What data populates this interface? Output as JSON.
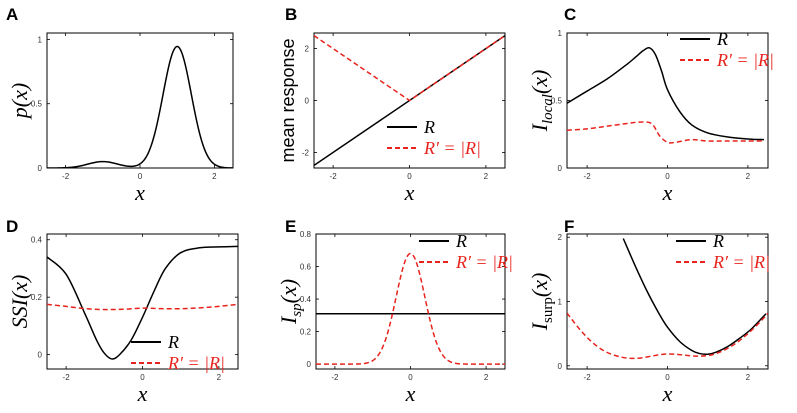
{
  "colors": {
    "solid": "#000000",
    "dashed": "#e8231d"
  },
  "chart_data": [
    {
      "panel": "A",
      "type": "line",
      "ylabel": "p(x)",
      "ylabel_sub": "",
      "ylabel_paren": "",
      "xlabel": "x",
      "xlim": [
        -2.5,
        2.5
      ],
      "ylim": [
        0,
        1.05
      ],
      "xticks": [
        -2,
        0,
        2
      ],
      "yticks": [
        0,
        0.5,
        1
      ],
      "series": [
        {
          "name": "p(x)",
          "style": "solid",
          "func": "gaussmix",
          "params": {
            "w1": 0.1,
            "m1": -1,
            "s1": 0.4,
            "w2": 0.9,
            "m2": 1,
            "s2": 0.38
          }
        }
      ],
      "legend": []
    },
    {
      "panel": "B",
      "type": "line",
      "ylabel": "mean response",
      "ylabel_plain": true,
      "xlabel": "x",
      "xlim": [
        -2.5,
        2.5
      ],
      "ylim": [
        -2.6,
        2.6
      ],
      "xticks": [
        -2,
        0,
        2
      ],
      "yticks": [
        -2,
        0,
        2
      ],
      "series": [
        {
          "name": "R",
          "style": "solid",
          "x": [
            -2.5,
            2.5
          ],
          "y": [
            -2.5,
            2.5
          ]
        },
        {
          "name": "R′ = |R|",
          "style": "dashed",
          "x": [
            -2.5,
            0,
            2.5
          ],
          "y": [
            2.5,
            0,
            2.5
          ]
        }
      ],
      "legend": [
        {
          "label": "R",
          "style": "solid"
        },
        {
          "label": "R′ = |R|",
          "style": "dashed"
        }
      ],
      "legend_position": "bottom-right"
    },
    {
      "panel": "C",
      "type": "line",
      "ylabel": "I",
      "ylabel_sub": "local",
      "ylabel_paren": "(x)",
      "xlabel": "x",
      "xlim": [
        -2.5,
        2.5
      ],
      "ylim": [
        0,
        1.0
      ],
      "xticks": [
        -2,
        0,
        2
      ],
      "yticks": [
        0,
        0.5,
        1
      ],
      "series": [
        {
          "name": "R",
          "style": "solid",
          "x": [
            -2.5,
            -2,
            -1.5,
            -1,
            -0.8,
            -0.6,
            -0.45,
            -0.3,
            -0.15,
            0,
            0.3,
            0.6,
            1,
            1.5,
            2,
            2.4
          ],
          "y": [
            0.48,
            0.57,
            0.66,
            0.77,
            0.82,
            0.87,
            0.89,
            0.84,
            0.72,
            0.58,
            0.42,
            0.32,
            0.26,
            0.23,
            0.215,
            0.21
          ]
        },
        {
          "name": "R′ = |R|",
          "style": "dashed",
          "x": [
            -2.5,
            -2,
            -1.5,
            -1,
            -0.7,
            -0.4,
            -0.2,
            0,
            0.2,
            0.6,
            1,
            1.5,
            2,
            2.4
          ],
          "y": [
            0.28,
            0.29,
            0.31,
            0.33,
            0.34,
            0.33,
            0.24,
            0.19,
            0.19,
            0.21,
            0.2,
            0.2,
            0.2,
            0.2
          ]
        }
      ],
      "legend": [
        {
          "label": "R",
          "style": "solid"
        },
        {
          "label": "R′ = |R|",
          "style": "dashed"
        }
      ],
      "legend_position": "top-right"
    },
    {
      "panel": "D",
      "type": "line",
      "ylabel": "SSI(x)",
      "ylabel_sub": "",
      "ylabel_paren": "",
      "xlabel": "x",
      "xlim": [
        -2.5,
        2.5
      ],
      "ylim": [
        -0.05,
        0.42
      ],
      "xticks": [
        -2,
        0,
        2
      ],
      "yticks": [
        0,
        0.2,
        0.4
      ],
      "series": [
        {
          "name": "R",
          "style": "solid",
          "x": [
            -2.5,
            -2,
            -1.5,
            -1.2,
            -1,
            -0.8,
            -0.6,
            -0.3,
            0,
            0.3,
            0.6,
            1,
            1.5,
            2,
            2.5
          ],
          "y": [
            0.34,
            0.28,
            0.14,
            0.05,
            0.005,
            -0.015,
            0.0,
            0.05,
            0.13,
            0.22,
            0.3,
            0.355,
            0.372,
            0.375,
            0.377
          ]
        },
        {
          "name": "R′ = |R|",
          "style": "dashed",
          "x": [
            -2.5,
            -2,
            -1.5,
            -1,
            -0.5,
            0,
            0.5,
            1,
            1.5,
            2,
            2.5
          ],
          "y": [
            0.175,
            0.168,
            0.16,
            0.157,
            0.158,
            0.162,
            0.16,
            0.16,
            0.163,
            0.168,
            0.175
          ]
        }
      ],
      "legend": [
        {
          "label": "R",
          "style": "solid"
        },
        {
          "label": "R′ = |R|",
          "style": "dashed"
        }
      ],
      "legend_position": "bottom-right"
    },
    {
      "panel": "E",
      "type": "line",
      "ylabel": "I",
      "ylabel_sub": "sp",
      "ylabel_paren": "(x)",
      "xlabel": "x",
      "xlim": [
        -2.5,
        2.5
      ],
      "ylim": [
        -0.03,
        0.8
      ],
      "xticks": [
        -2,
        0,
        2
      ],
      "yticks": [
        0,
        0.2,
        0.4,
        0.6,
        0.8
      ],
      "series": [
        {
          "name": "R",
          "style": "solid",
          "x": [
            -2.5,
            2.5
          ],
          "y": [
            0.31,
            0.31
          ]
        },
        {
          "name": "R′ = |R|",
          "style": "dashed",
          "func": "bell",
          "params": {
            "base": 0.0,
            "amp": 0.68,
            "mu": 0.0,
            "sigma": 0.38
          }
        }
      ],
      "legend": [
        {
          "label": "R",
          "style": "solid"
        },
        {
          "label": "R′ = |R|",
          "style": "dashed"
        }
      ],
      "legend_position": "top-right"
    },
    {
      "panel": "F",
      "type": "line",
      "ylabel": "I",
      "ylabel_sub": "surp",
      "ylabel_sub_upright": true,
      "ylabel_paren": "(x)",
      "xlabel": "x",
      "xlim": [
        -2.5,
        2.5
      ],
      "ylim": [
        -0.05,
        2.05
      ],
      "xticks": [
        -2,
        0,
        2
      ],
      "yticks": [
        0,
        1,
        2
      ],
      "series": [
        {
          "name": "R",
          "style": "solid",
          "x": [
            -1.1,
            -0.8,
            -0.5,
            -0.2,
            0,
            0.3,
            0.6,
            0.8,
            1.0,
            1.2,
            1.5,
            1.8,
            2.1,
            2.45
          ],
          "y": [
            1.98,
            1.55,
            1.15,
            0.8,
            0.6,
            0.38,
            0.24,
            0.19,
            0.18,
            0.21,
            0.3,
            0.43,
            0.58,
            0.81
          ]
        },
        {
          "name": "R′ = |R|",
          "style": "dashed",
          "x": [
            -2.5,
            -2.2,
            -1.9,
            -1.6,
            -1.3,
            -1,
            -0.7,
            -0.4,
            -0.1,
            0.2,
            0.5,
            0.8,
            1.1,
            1.4,
            1.7,
            2.0,
            2.3,
            2.5
          ],
          "y": [
            0.82,
            0.58,
            0.38,
            0.24,
            0.16,
            0.12,
            0.12,
            0.15,
            0.18,
            0.18,
            0.16,
            0.15,
            0.17,
            0.24,
            0.35,
            0.5,
            0.68,
            0.82
          ]
        }
      ],
      "legend": [
        {
          "label": "R",
          "style": "solid"
        },
        {
          "label": "R′ = |R|",
          "style": "dashed"
        }
      ],
      "legend_position": "top-right"
    }
  ]
}
